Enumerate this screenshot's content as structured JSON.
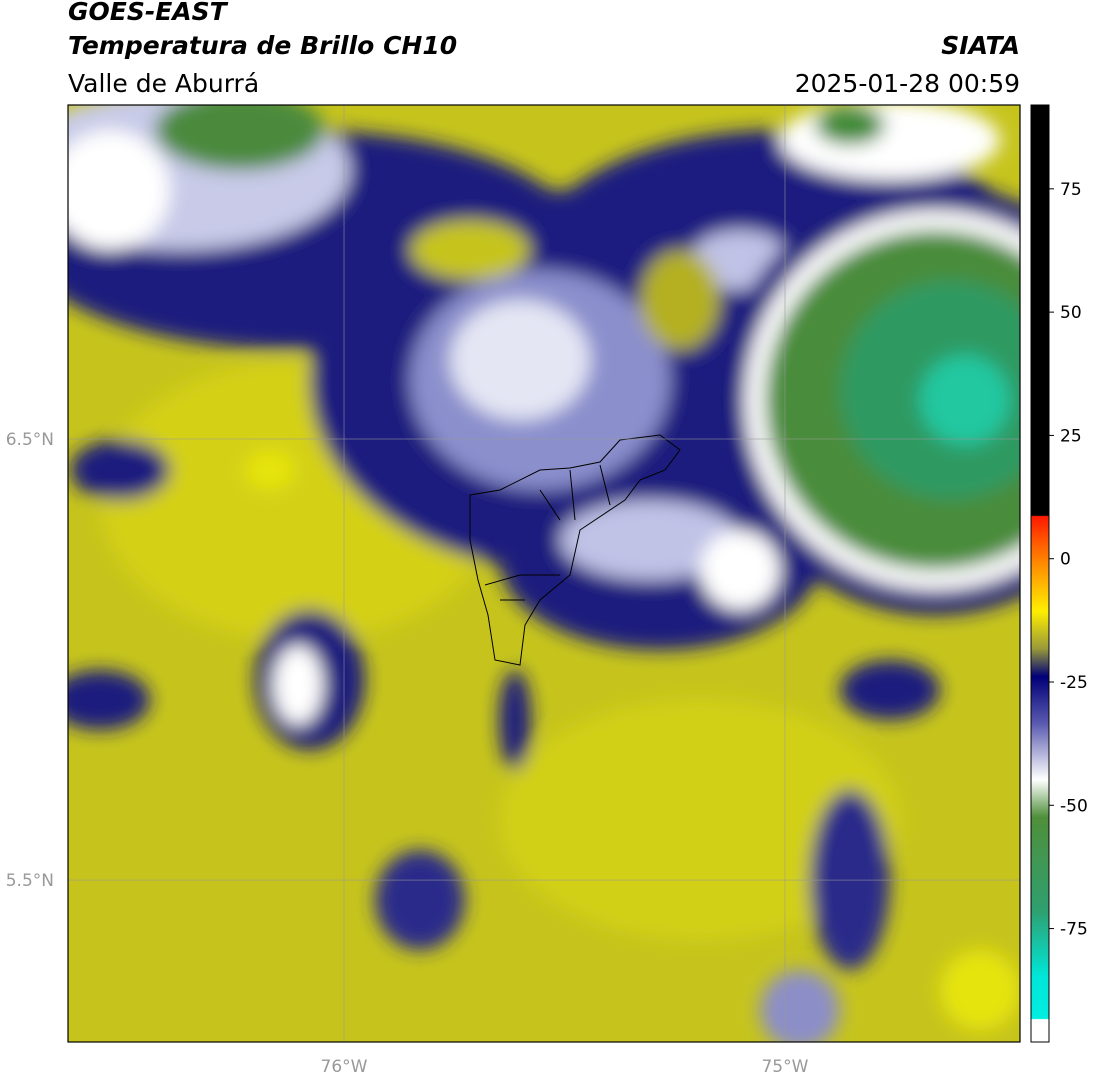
{
  "header": {
    "title": "GOES-EAST",
    "subtitle": "Temperatura de Brillo CH10",
    "region": "Valle de Aburrá",
    "source": "SIATA",
    "datetime": "2025-01-28 00:59"
  },
  "map": {
    "xlim": [
      -76.626,
      -74.467
    ],
    "ylim": [
      5.133,
      7.257
    ],
    "xticks": [
      {
        "value": -76,
        "label": "76°W"
      },
      {
        "value": -75,
        "label": "75°W"
      }
    ],
    "yticks": [
      {
        "value": 6.5,
        "label": "6.5°N"
      },
      {
        "value": 5.5,
        "label": "5.5°N"
      }
    ],
    "grid": true
  },
  "colorbar": {
    "lim": [
      -98,
      92
    ],
    "ticks": [
      75,
      50,
      25,
      0,
      -25,
      -50,
      -75
    ]
  }
}
